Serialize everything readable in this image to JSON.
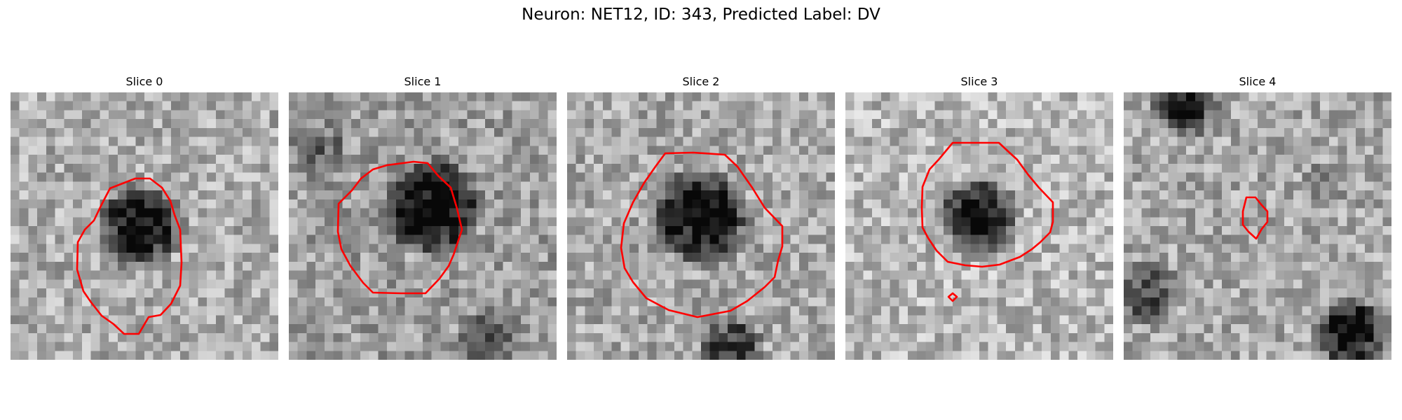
{
  "figure": {
    "title": "Neuron: NET12, ID: 343, Predicted Label: DV",
    "contour_color": "#ff0000",
    "colormap": "gray"
  },
  "panels": [
    {
      "label": "Slice 0"
    },
    {
      "label": "Slice 1"
    },
    {
      "label": "Slice 2"
    },
    {
      "label": "Slice 3"
    },
    {
      "label": "Slice 4"
    }
  ]
}
